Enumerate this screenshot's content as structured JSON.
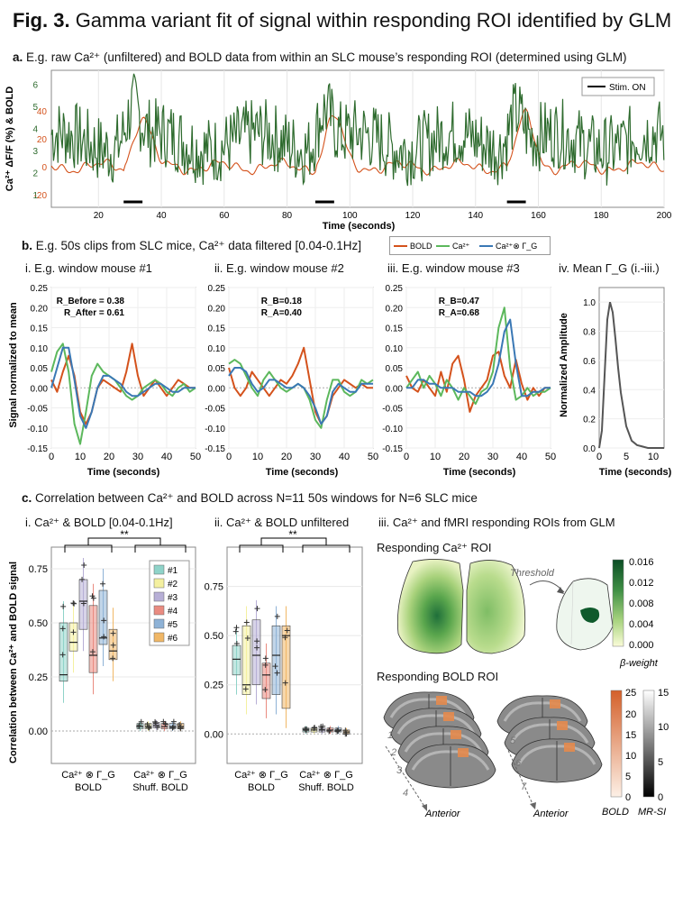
{
  "figure": {
    "label": "Fig. 3.",
    "title": "Gamma variant fit of signal within responding ROI identified by GLM"
  },
  "panel_a": {
    "title_prefix": "a.",
    "title": "E.g. raw Ca²⁺ (unfiltered) and BOLD data from within an SLC mouse’s responding ROI (determined using GLM)",
    "ylabel": "Ca²⁺ ΔF/F (%) & BOLD",
    "xlabel": "Time (seconds)",
    "legend": "Stim. ON",
    "colors": {
      "ca": "#2e6b2e",
      "bold": "#d4521c"
    }
  },
  "panel_b": {
    "title_prefix": "b.",
    "title": "E.g. 50s clips from SLC mice, Ca²⁺ data filtered [0.04-0.1Hz]",
    "legend": [
      "BOLD",
      "Ca²⁺",
      "Ca²⁺⊗ Γ_G"
    ],
    "legend_colors": [
      "#d4521c",
      "#5cb85c",
      "#3a78b5"
    ],
    "sub": [
      {
        "title": "i. E.g. window mouse #1",
        "r1": "R_Before = 0.38",
        "r2": "R_After = 0.61"
      },
      {
        "title": "ii. E.g. window mouse #2",
        "r1": "R_B=0.18",
        "r2": "R_A=0.40"
      },
      {
        "title": "iii. E.g. window mouse #3",
        "r1": "R_B=0.47",
        "r2": "R_A=0.68"
      },
      {
        "title": "iv. Mean Γ_G (i.-iii.)",
        "ylabel": "Normalized Amplitude"
      }
    ],
    "ylabel": "Signal normalized to mean",
    "xlabel": "Time (seconds)"
  },
  "panel_c": {
    "title_prefix": "c.",
    "title": "Correlation between Ca²⁺ and BOLD across N=11 50s windows for N=6 SLC mice",
    "sub_i": "i. Ca²⁺ & BOLD [0.04-0.1Hz]",
    "sub_ii": "ii. Ca²⁺ & BOLD unfiltered",
    "sub_iii": "iii. Ca²⁺ and fMRI responding ROIs from GLM",
    "ylabel": "Correlation between Ca²⁺ and BOLD signal",
    "significance": "**",
    "xcat1": "Ca²⁺ ⊗ Γ_G",
    "xcat1b": "BOLD",
    "xcat2": "Ca²⁺ ⊗ Γ_G",
    "xcat2b": "Shuff. BOLD",
    "legend": [
      "#1",
      "#2",
      "#3",
      "#4",
      "#5",
      "#6"
    ],
    "mouse_colors": [
      "#8fd3c9",
      "#f4f0a0",
      "#b7afd6",
      "#e98b80",
      "#8eb2d6",
      "#f0b766"
    ],
    "ca_roi_title": "Responding Ca²⁺ ROI",
    "threshold": "Threshold",
    "beta_label": "β-weight",
    "beta_ticks": [
      "0.016",
      "0.012",
      "0.008",
      "0.004",
      "0.000"
    ],
    "bold_roi_title": "Responding BOLD ROI",
    "slice_numbers": [
      "1",
      "2",
      "3",
      "4",
      "5",
      "6",
      "7"
    ],
    "anterior": "Anterior",
    "bold_label": "BOLD",
    "mrsi_label": "MR-SI",
    "bold_ticks": [
      "25",
      "20",
      "15",
      "10",
      "5",
      "0"
    ],
    "mrsi_ticks": [
      "15",
      "10",
      "5",
      "0"
    ]
  },
  "chart_data": [
    {
      "type": "line",
      "id": "a",
      "title": "E.g. raw Ca²⁺ (unfiltered) and BOLD data",
      "xlabel": "Time (seconds)",
      "xlim": [
        5,
        200
      ],
      "x_ticks": [
        20,
        40,
        60,
        80,
        100,
        120,
        140,
        160,
        180,
        200
      ],
      "y_ticks_ca": [
        1,
        2,
        3,
        4,
        5,
        6
      ],
      "y_ticks_bold": [
        -20,
        0,
        20,
        40
      ],
      "stim_on": [
        [
          28,
          34
        ],
        [
          89,
          95
        ],
        [
          150,
          156
        ]
      ],
      "series": [
        {
          "name": "Ca²⁺ ΔF/F (%)"
        },
        {
          "name": "BOLD"
        }
      ]
    },
    {
      "type": "line",
      "id": "b-i",
      "xlim": [
        0,
        50
      ],
      "ylim": [
        -0.15,
        0.25
      ],
      "x_ticks": [
        0,
        10,
        20,
        30,
        40,
        50
      ],
      "y_ticks": [
        -0.15,
        -0.1,
        -0.05,
        0,
        0.05,
        0.1,
        0.15,
        0.2,
        0.25
      ],
      "series": [
        {
          "name": "BOLD",
          "x": [
            0,
            2,
            4,
            6,
            8,
            10,
            12,
            14,
            16,
            18,
            20,
            22,
            24,
            26,
            28,
            30,
            32,
            34,
            36,
            38,
            40,
            42,
            44,
            46,
            48,
            50
          ],
          "y": [
            0.02,
            -0.01,
            0.04,
            0.08,
            0.03,
            -0.06,
            -0.09,
            -0.06,
            0.0,
            0.02,
            0.01,
            0.0,
            -0.01,
            0.04,
            0.11,
            0.03,
            -0.02,
            0.0,
            0.02,
            0.0,
            -0.02,
            0.0,
            0.02,
            0.01,
            0.0,
            0.0
          ]
        },
        {
          "name": "Ca²⁺",
          "x": [
            0,
            2,
            4,
            6,
            8,
            10,
            12,
            14,
            16,
            18,
            20,
            22,
            24,
            26,
            28,
            30,
            32,
            34,
            36,
            38,
            40,
            42,
            44,
            46,
            48,
            50
          ],
          "y": [
            0.04,
            0.09,
            0.11,
            0.04,
            -0.09,
            -0.14,
            -0.06,
            0.03,
            0.06,
            0.04,
            0.03,
            0.02,
            0.0,
            -0.02,
            -0.03,
            -0.02,
            0.0,
            0.01,
            0.02,
            0.01,
            -0.01,
            -0.02,
            0.0,
            0.01,
            -0.01,
            0.0
          ]
        },
        {
          "name": "Ca²⁺⊗Γ_G",
          "x": [
            0,
            2,
            4,
            6,
            8,
            10,
            12,
            14,
            16,
            18,
            20,
            22,
            24,
            26,
            28,
            30,
            32,
            34,
            36,
            38,
            40,
            42,
            44,
            46,
            48,
            50
          ],
          "y": [
            0.0,
            0.05,
            0.1,
            0.1,
            0.02,
            -0.07,
            -0.1,
            -0.06,
            0.0,
            0.03,
            0.03,
            0.02,
            0.01,
            -0.01,
            -0.02,
            -0.02,
            -0.01,
            0.0,
            0.01,
            0.01,
            0.0,
            -0.01,
            -0.01,
            0.0,
            0.0,
            0.0
          ]
        }
      ]
    },
    {
      "type": "line",
      "id": "b-ii",
      "xlim": [
        0,
        50
      ],
      "ylim": [
        -0.15,
        0.25
      ],
      "series": [
        {
          "name": "BOLD",
          "x": [
            0,
            2,
            4,
            6,
            8,
            10,
            12,
            14,
            16,
            18,
            20,
            22,
            24,
            26,
            28,
            30,
            32,
            34,
            36,
            38,
            40,
            42,
            44,
            46,
            48,
            50
          ],
          "y": [
            0.05,
            0.0,
            -0.02,
            0.0,
            0.04,
            0.02,
            0.0,
            -0.02,
            0.0,
            0.02,
            0.01,
            0.03,
            0.06,
            0.1,
            0.02,
            -0.06,
            -0.09,
            -0.07,
            -0.02,
            0.0,
            0.02,
            0.01,
            0.0,
            0.01,
            0.0,
            0.0
          ]
        },
        {
          "name": "Ca²⁺",
          "x": [
            0,
            2,
            4,
            6,
            8,
            10,
            12,
            14,
            16,
            18,
            20,
            22,
            24,
            26,
            28,
            30,
            32,
            34,
            36,
            38,
            40,
            42,
            44,
            46,
            48,
            50
          ],
          "y": [
            0.06,
            0.07,
            0.06,
            0.03,
            0.0,
            -0.02,
            0.02,
            0.04,
            0.02,
            0.0,
            -0.01,
            0.0,
            0.01,
            0.0,
            -0.03,
            -0.08,
            -0.1,
            -0.03,
            0.02,
            0.02,
            -0.01,
            -0.02,
            -0.01,
            0.02,
            0.01,
            0.02
          ]
        },
        {
          "name": "Ca²⁺⊗Γ_G",
          "x": [
            0,
            2,
            4,
            6,
            8,
            10,
            12,
            14,
            16,
            18,
            20,
            22,
            24,
            26,
            28,
            30,
            32,
            34,
            36,
            38,
            40,
            42,
            44,
            46,
            48,
            50
          ],
          "y": [
            0.03,
            0.05,
            0.05,
            0.04,
            0.01,
            -0.01,
            0.0,
            0.02,
            0.02,
            0.01,
            0.0,
            0.0,
            0.01,
            0.0,
            -0.02,
            -0.05,
            -0.09,
            -0.07,
            -0.01,
            0.01,
            0.0,
            -0.01,
            -0.01,
            0.01,
            0.01,
            0.01
          ]
        }
      ]
    },
    {
      "type": "line",
      "id": "b-iii",
      "xlim": [
        0,
        50
      ],
      "ylim": [
        -0.15,
        0.25
      ],
      "series": [
        {
          "name": "BOLD",
          "x": [
            0,
            2,
            4,
            6,
            8,
            10,
            12,
            14,
            16,
            18,
            20,
            22,
            24,
            26,
            28,
            30,
            32,
            34,
            36,
            38,
            40,
            42,
            44,
            46,
            48,
            50
          ],
          "y": [
            0.03,
            0.0,
            -0.01,
            0.02,
            0.0,
            -0.02,
            0.04,
            -0.01,
            0.06,
            0.08,
            0.02,
            -0.06,
            -0.02,
            0.0,
            0.02,
            0.08,
            0.09,
            0.03,
            0.0,
            0.07,
            0.01,
            -0.03,
            0.0,
            -0.02,
            0.0,
            0.0
          ]
        },
        {
          "name": "Ca²⁺",
          "x": [
            0,
            2,
            4,
            6,
            8,
            10,
            12,
            14,
            16,
            18,
            20,
            22,
            24,
            26,
            28,
            30,
            32,
            34,
            36,
            38,
            40,
            42,
            44,
            46,
            48,
            50
          ],
          "y": [
            0.0,
            0.02,
            0.04,
            0.0,
            0.03,
            0.01,
            -0.02,
            0.02,
            0.0,
            -0.03,
            0.0,
            -0.02,
            -0.04,
            -0.01,
            0.0,
            0.04,
            0.15,
            0.2,
            0.05,
            -0.03,
            -0.02,
            0.0,
            -0.02,
            -0.01,
            -0.01,
            0.0
          ]
        },
        {
          "name": "Ca²⁺⊗Γ_G",
          "x": [
            0,
            2,
            4,
            6,
            8,
            10,
            12,
            14,
            16,
            18,
            20,
            22,
            24,
            26,
            28,
            30,
            32,
            34,
            36,
            38,
            40,
            42,
            44,
            46,
            48,
            50
          ],
          "y": [
            0.0,
            0.0,
            0.02,
            0.02,
            0.01,
            0.01,
            0.0,
            0.0,
            0.0,
            -0.01,
            -0.01,
            -0.01,
            -0.02,
            -0.02,
            -0.01,
            0.01,
            0.06,
            0.14,
            0.17,
            0.06,
            -0.02,
            -0.02,
            -0.01,
            -0.01,
            0.0,
            0.0
          ]
        }
      ]
    },
    {
      "type": "line",
      "id": "b-iv",
      "xlim": [
        0,
        12
      ],
      "ylim": [
        0,
        1.1
      ],
      "x_ticks": [
        0,
        5,
        10
      ],
      "y_ticks": [
        0,
        0.2,
        0.4,
        0.6,
        0.8,
        1.0
      ],
      "series": [
        {
          "name": "Mean Γ_G",
          "x": [
            0,
            0.5,
            1,
            1.5,
            2,
            2.5,
            3,
            3.5,
            4,
            5,
            6,
            7,
            8,
            9,
            10,
            12
          ],
          "y": [
            0,
            0.12,
            0.5,
            0.88,
            1.0,
            0.93,
            0.75,
            0.55,
            0.38,
            0.15,
            0.05,
            0.02,
            0.01,
            0,
            0,
            0
          ]
        }
      ]
    },
    {
      "type": "box",
      "id": "c-i",
      "ylim": [
        -0.15,
        0.85
      ],
      "y_ticks": [
        0,
        0.25,
        0.5,
        0.75
      ],
      "categories": [
        "Ca²⁺ ⊗ Γ_G / BOLD",
        "Ca²⁺ ⊗ Γ_G / Shuff. BOLD"
      ],
      "group1_medians": [
        0.26,
        0.41,
        0.6,
        0.35,
        0.43,
        0.37
      ],
      "group1_q1": [
        0.23,
        0.37,
        0.47,
        0.27,
        0.4,
        0.33
      ],
      "group1_q3": [
        0.5,
        0.5,
        0.7,
        0.58,
        0.65,
        0.47
      ],
      "group2_medians": [
        0.02,
        0.02,
        0.025,
        0.02,
        0.02,
        0.02
      ],
      "group2_q1": [
        0.01,
        0.01,
        0.015,
        0.01,
        0.01,
        0.01
      ],
      "group2_q3": [
        0.035,
        0.035,
        0.04,
        0.035,
        0.035,
        0.035
      ]
    },
    {
      "type": "box",
      "id": "c-ii",
      "ylim": [
        -0.15,
        0.95
      ],
      "y_ticks": [
        0,
        0.25,
        0.5,
        0.75
      ],
      "categories": [
        "Ca²⁺ ⊗ Γ_G / BOLD",
        "Ca²⁺ ⊗ Γ_G / Shuff. BOLD"
      ],
      "group1_medians": [
        0.38,
        0.25,
        0.4,
        0.3,
        0.4,
        0.5
      ],
      "group1_q1": [
        0.3,
        0.2,
        0.25,
        0.18,
        0.2,
        0.13
      ],
      "group1_q3": [
        0.45,
        0.55,
        0.58,
        0.36,
        0.55,
        0.55
      ],
      "group2_medians": [
        0.02,
        0.02,
        0.02,
        0.02,
        0.02,
        0.01
      ],
      "group2_q1": [
        0.01,
        0.01,
        0.01,
        0.01,
        0.01,
        0.0
      ],
      "group2_q3": [
        0.03,
        0.03,
        0.03,
        0.03,
        0.03,
        0.02
      ]
    }
  ]
}
